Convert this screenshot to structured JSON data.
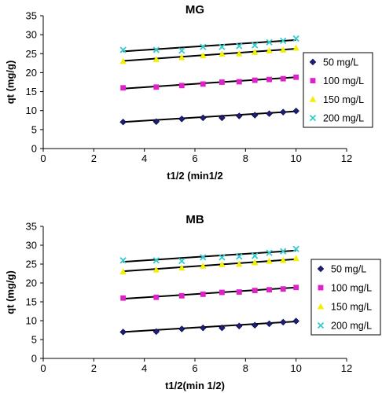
{
  "chart_data": [
    {
      "type": "scatter",
      "title": "MG",
      "xlabel": "t1/2 (min1/2",
      "ylabel": "qt (mg/g)",
      "xlim": [
        0,
        12
      ],
      "ylim": [
        0,
        35
      ],
      "xticks": [
        "0",
        "2",
        "4",
        "6",
        "8",
        "10",
        "12"
      ],
      "yticks": [
        "0",
        "5",
        "10",
        "15",
        "20",
        "25",
        "30",
        "35"
      ],
      "legend_position": "right",
      "x": [
        3.16,
        4.47,
        5.48,
        6.32,
        7.07,
        7.75,
        8.37,
        8.94,
        9.49,
        10.0
      ],
      "series": [
        {
          "name": "50 mg/L",
          "marker": "diamond",
          "color": "#1f1f7a",
          "values": [
            7.0,
            7.1,
            7.8,
            8.1,
            8.1,
            8.6,
            8.8,
            9.2,
            9.6,
            9.9
          ],
          "fit": [
            7.0,
            9.8
          ]
        },
        {
          "name": "100 mg/L",
          "marker": "square",
          "color": "#e020c8",
          "values": [
            16.0,
            16.2,
            16.6,
            17.0,
            17.5,
            17.6,
            18.0,
            18.2,
            18.4,
            18.8
          ],
          "fit": [
            15.8,
            18.8
          ]
        },
        {
          "name": "150 mg/L",
          "marker": "triangle",
          "color": "#f0f000",
          "values": [
            23.0,
            23.5,
            24.0,
            24.5,
            24.9,
            25.0,
            25.4,
            25.8,
            26.0,
            26.5
          ],
          "fit": [
            23.1,
            26.3
          ]
        },
        {
          "name": "200 mg/L",
          "marker": "x",
          "color": "#33cccc",
          "values": [
            26.0,
            26.0,
            25.8,
            26.8,
            26.8,
            27.0,
            27.2,
            28.0,
            28.4,
            29.0
          ],
          "fit": [
            25.6,
            28.6
          ]
        }
      ]
    },
    {
      "type": "scatter",
      "title": "MB",
      "xlabel": "t1/2(min 1/2)",
      "ylabel": "qt (mg/g)",
      "xlim": [
        0,
        12
      ],
      "ylim": [
        0,
        35
      ],
      "xticks": [
        "0",
        "2",
        "4",
        "6",
        "8",
        "10",
        "12"
      ],
      "yticks": [
        "0",
        "5",
        "10",
        "15",
        "20",
        "25",
        "30",
        "35"
      ],
      "legend_position": "right",
      "x": [
        3.16,
        4.47,
        5.48,
        6.32,
        7.07,
        7.75,
        8.37,
        8.94,
        9.49,
        10.0
      ],
      "series": [
        {
          "name": "50 mg/L",
          "marker": "diamond",
          "color": "#1f1f7a",
          "values": [
            7.0,
            7.1,
            7.8,
            8.1,
            8.1,
            8.6,
            8.8,
            9.2,
            9.6,
            9.9
          ],
          "fit": [
            7.0,
            9.8
          ]
        },
        {
          "name": "100 mg/L",
          "marker": "square",
          "color": "#e020c8",
          "values": [
            16.0,
            16.2,
            16.6,
            17.0,
            17.5,
            17.6,
            18.0,
            18.2,
            18.4,
            18.8
          ],
          "fit": [
            15.8,
            18.8
          ]
        },
        {
          "name": "150 mg/L",
          "marker": "triangle",
          "color": "#f0f000",
          "values": [
            23.0,
            23.5,
            24.0,
            24.5,
            24.9,
            25.0,
            25.4,
            25.8,
            26.0,
            26.5
          ],
          "fit": [
            23.1,
            26.3
          ]
        },
        {
          "name": "200 mg/L",
          "marker": "x",
          "color": "#33cccc",
          "values": [
            26.0,
            26.0,
            25.8,
            26.8,
            26.8,
            27.0,
            27.2,
            28.0,
            28.4,
            29.0
          ],
          "fit": [
            25.6,
            28.6
          ]
        }
      ]
    }
  ]
}
